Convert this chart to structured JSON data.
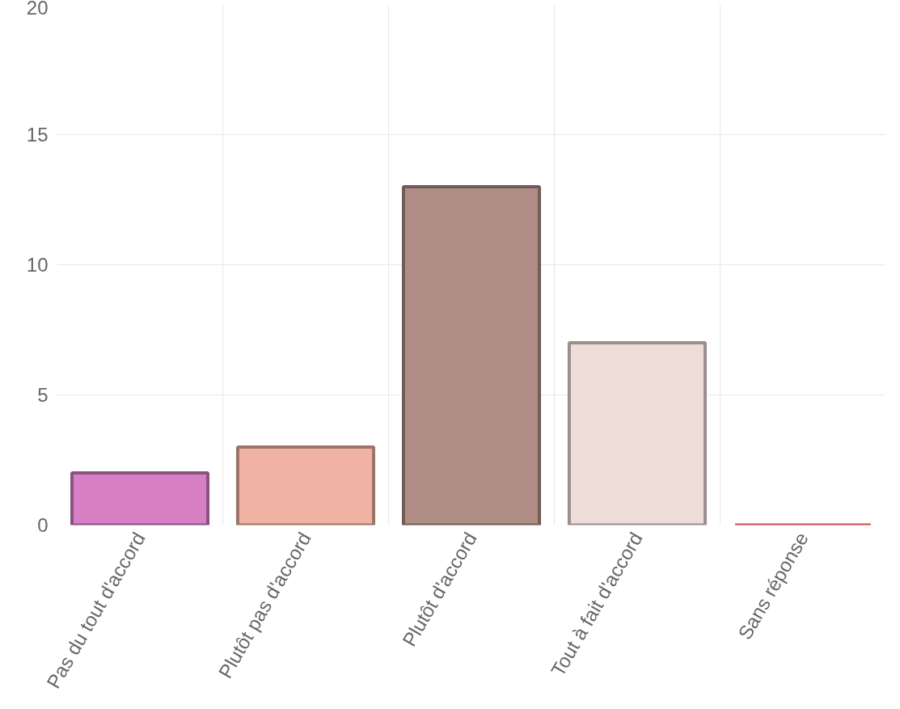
{
  "chart_data": {
    "type": "bar",
    "categories": [
      "Pas du tout d'accord",
      "Plutôt pas d'accord",
      "Plutôt d'accord",
      "Tout à fait d'accord",
      "Sans réponse"
    ],
    "values": [
      2,
      3,
      13,
      7,
      0
    ],
    "colors": [
      "#d67fc5",
      "#f0b3a3",
      "#b08e86",
      "#eddcd8",
      "#c94a4a"
    ],
    "ylim": [
      0,
      20
    ],
    "yticks": [
      0,
      5,
      10,
      15,
      20
    ],
    "grid": true
  }
}
